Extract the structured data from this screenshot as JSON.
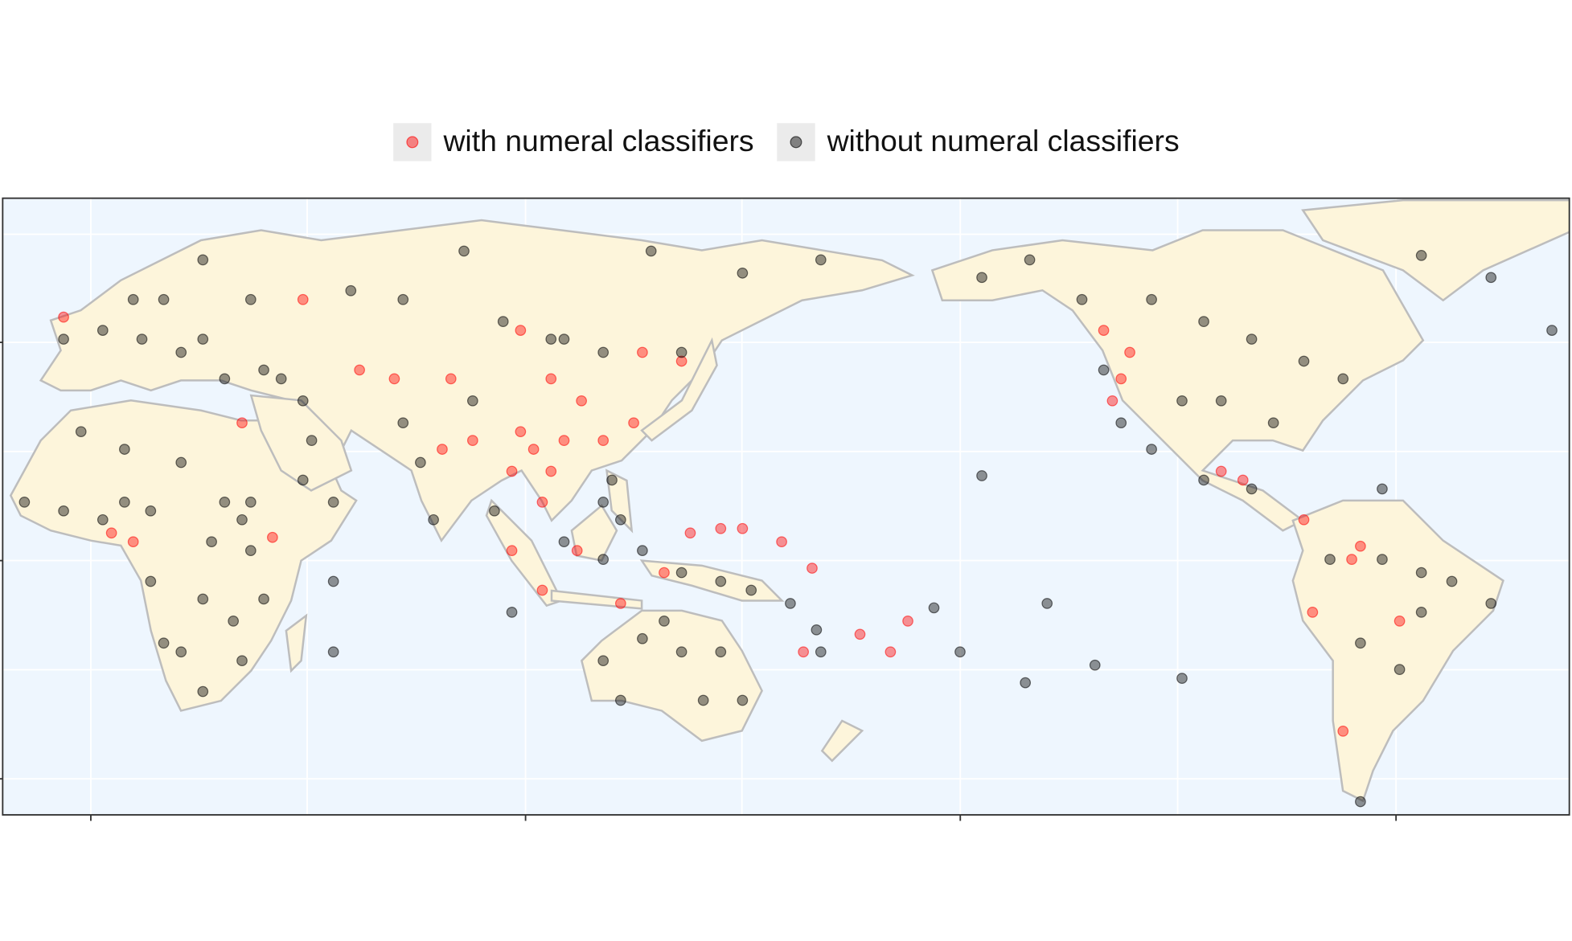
{
  "chart_data": {
    "type": "scatter",
    "xlim": [
      -20,
      340
    ],
    "ylim": [
      -61,
      79
    ],
    "legend": "top",
    "series": [
      {
        "name": "with numeral classifiers",
        "color": "#ff0000",
        "x": [
          102,
          106,
          99,
          109,
          104,
          118,
          125,
          113,
          88,
          81,
          97,
          106,
          127,
          99,
          49,
          70,
          62,
          5,
          10,
          97,
          104,
          112,
          122,
          132,
          138,
          145,
          150,
          159,
          166,
          177,
          184,
          188,
          164,
          233,
          239,
          235,
          237,
          265,
          260,
          279,
          292,
          290,
          288,
          301,
          281,
          -6,
          35,
          42,
          83,
          136
        ],
        "y": [
          22,
          17,
          26,
          24,
          10,
          24,
          28,
          33,
          24,
          22,
          17,
          38,
          44,
          49,
          56,
          38,
          40,
          3,
          1,
          -1,
          -10,
          -1,
          -13,
          -6,
          3,
          4,
          4,
          1,
          -5,
          -20,
          -24,
          -17,
          -24,
          49,
          44,
          33,
          38,
          15,
          17,
          6,
          0,
          -3,
          -42,
          -17,
          -15,
          52,
          28,
          2,
          38,
          42
        ]
      },
      {
        "name": "without numeral classifiers",
        "color": "#000000",
        "x": [
          -15,
          -6,
          3,
          14,
          28,
          35,
          37,
          26,
          33,
          21,
          26,
          17,
          35,
          8,
          21,
          -2,
          49,
          56,
          40,
          14,
          31,
          37,
          8,
          -6,
          3,
          12,
          17,
          10,
          21,
          26,
          31,
          40,
          44,
          49,
          51,
          37,
          26,
          60,
          86,
          106,
          118,
          129,
          150,
          168,
          72,
          76,
          79,
          88,
          109,
          136,
          95,
          72,
          120,
          122,
          118,
          127,
          136,
          145,
          152,
          161,
          167,
          168,
          93,
          109,
          118,
          118,
          127,
          136,
          141,
          150,
          132,
          145,
          122,
          205,
          220,
          200,
          215,
          231,
          251,
          194,
          56,
          97,
          56,
          205,
          216,
          228,
          244,
          256,
          267,
          279,
          288,
          272,
          260,
          251,
          244,
          256,
          267,
          297,
          285,
          297,
          306,
          313,
          322,
          292,
          301,
          292,
          306,
          233,
          237,
          322,
          306,
          336
        ],
        "y": [
          10,
          8,
          6,
          8,
          1,
          6,
          -1,
          -12,
          -17,
          -24,
          -33,
          -22,
          -26,
          22,
          19,
          26,
          15,
          10,
          -12,
          -8,
          10,
          10,
          10,
          47,
          49,
          47,
          56,
          56,
          44,
          47,
          38,
          40,
          38,
          33,
          24,
          56,
          65,
          58,
          67,
          47,
          44,
          67,
          62,
          65,
          28,
          19,
          6,
          33,
          47,
          44,
          51,
          56,
          15,
          6,
          10,
          -1,
          -6,
          -8,
          -10,
          -13,
          -19,
          -24,
          8,
          1,
          -3,
          -26,
          -21,
          -24,
          -35,
          -35,
          -17,
          -24,
          -35,
          16,
          -13,
          -24,
          -31,
          -27,
          -30,
          -14,
          -8,
          -15,
          -24,
          61,
          65,
          56,
          56,
          51,
          47,
          42,
          38,
          28,
          33,
          33,
          22,
          15,
          13,
          13,
          -3,
          -3,
          -6,
          -8,
          -13,
          -22,
          -28,
          -58,
          -15,
          40,
          28,
          61,
          66,
          49
        ]
      }
    ]
  }
}
